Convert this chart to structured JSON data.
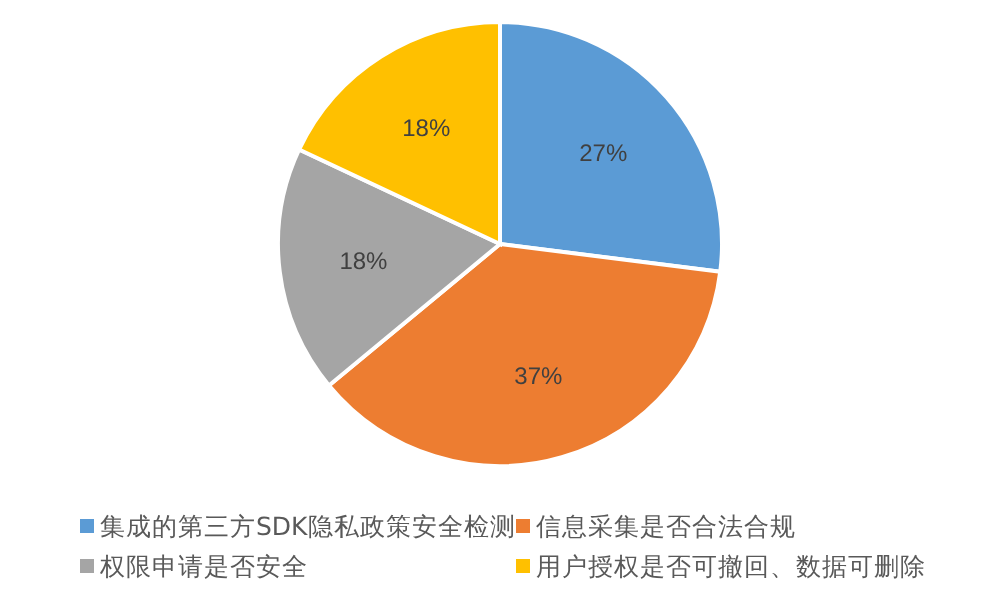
{
  "chart_data": {
    "type": "pie",
    "categories": [
      "集成的第三方SDK隐私政策安全检测",
      "信息采集是否合法合规",
      "权限申请是否安全",
      "用户授权是否可撤回、数据可删除"
    ],
    "values": [
      27,
      37,
      18,
      18
    ],
    "value_labels": [
      "27%",
      "37%",
      "18%",
      "18%"
    ],
    "colors": [
      "#5b9bd5",
      "#ed7d31",
      "#a5a5a5",
      "#ffc000"
    ],
    "legend": "bottom"
  }
}
